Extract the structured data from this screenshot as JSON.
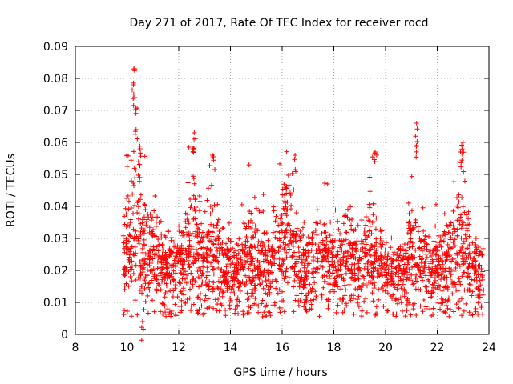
{
  "chart_data": {
    "type": "scatter",
    "title": "Day 271 of 2017, Rate Of TEC Index for receiver rocd",
    "xlabel": "GPS time / hours",
    "ylabel": "ROTI / TECUs",
    "xlim": [
      8,
      24
    ],
    "ylim": [
      0,
      0.09
    ],
    "xticks": [
      "8",
      "10",
      "12",
      "14",
      "16",
      "18",
      "20",
      "22",
      "24"
    ],
    "yticks": [
      "0",
      "0.01",
      "0.02",
      "0.03",
      "0.04",
      "0.05",
      "0.06",
      "0.07",
      "0.08",
      "0.09"
    ],
    "grid": true,
    "marker": "plus",
    "color": "#ff0000",
    "x_range_of_data": [
      9.85,
      23.8
    ],
    "baseline_range": [
      0.01,
      0.025
    ],
    "notable_points": [
      {
        "x": 10.3,
        "y": 0.083
      },
      {
        "x": 10.25,
        "y": 0.078
      },
      {
        "x": 10.3,
        "y": 0.074
      },
      {
        "x": 10.35,
        "y": 0.064
      },
      {
        "x": 10.5,
        "y": 0.058
      },
      {
        "x": 10.0,
        "y": 0.056
      },
      {
        "x": 12.6,
        "y": 0.063
      },
      {
        "x": 12.55,
        "y": 0.058
      },
      {
        "x": 13.3,
        "y": 0.056
      },
      {
        "x": 16.5,
        "y": 0.056
      },
      {
        "x": 19.6,
        "y": 0.057
      },
      {
        "x": 21.2,
        "y": 0.066
      },
      {
        "x": 21.2,
        "y": 0.059
      },
      {
        "x": 23.0,
        "y": 0.06
      },
      {
        "x": 22.9,
        "y": 0.057
      },
      {
        "x": 10.6,
        "y": 0.004
      }
    ]
  }
}
